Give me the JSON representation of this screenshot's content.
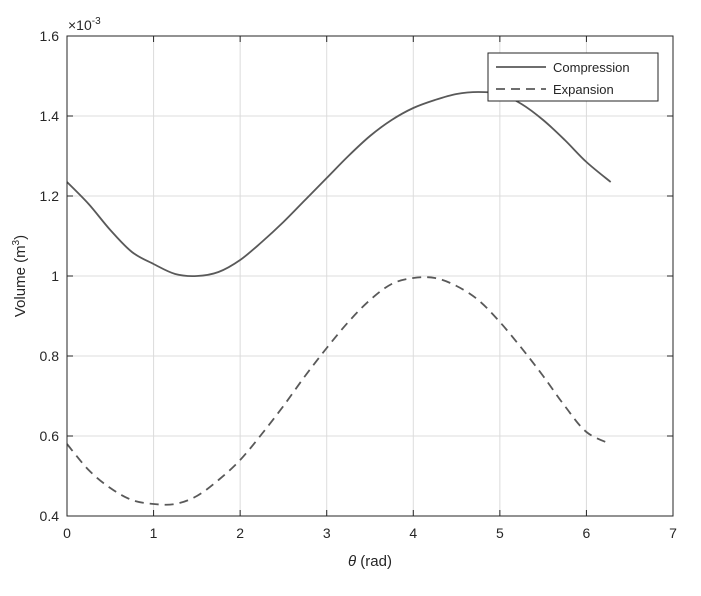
{
  "chart_data": {
    "type": "line",
    "title": "",
    "xlabel_symbol": "θ",
    "xlabel_unit": " (rad)",
    "ylabel_text": "Volume (m",
    "ylabel_sup": "3",
    "ylabel_close": ")",
    "y_multiplier_base": "×10",
    "y_multiplier_exp": "-3",
    "xlim": [
      0,
      7
    ],
    "ylim": [
      0.4,
      1.6
    ],
    "xticks": [
      0,
      1,
      2,
      3,
      4,
      5,
      6,
      7
    ],
    "xtick_labels": [
      "0",
      "1",
      "2",
      "3",
      "4",
      "5",
      "6",
      "7"
    ],
    "yticks": [
      0.4,
      0.6,
      0.8,
      1.0,
      1.2,
      1.4,
      1.6
    ],
    "ytick_labels": [
      "0.4",
      "0.6",
      "0.8",
      "1",
      "1.2",
      "1.4",
      "1.6"
    ],
    "grid": true,
    "legend_position": "top-right",
    "x": [
      0,
      0.25,
      0.5,
      0.75,
      1.0,
      1.25,
      1.5,
      1.75,
      2.0,
      2.25,
      2.5,
      2.75,
      3.0,
      3.25,
      3.5,
      3.75,
      4.0,
      4.25,
      4.5,
      4.75,
      5.0,
      5.25,
      5.5,
      5.75,
      6.0,
      6.28
    ],
    "series": [
      {
        "name": "Compression",
        "style": "solid",
        "color": "#595959",
        "values": [
          1.235,
          1.18,
          1.115,
          1.06,
          1.03,
          1.005,
          1.0,
          1.01,
          1.04,
          1.085,
          1.135,
          1.19,
          1.245,
          1.3,
          1.35,
          1.39,
          1.42,
          1.44,
          1.455,
          1.46,
          1.455,
          1.43,
          1.39,
          1.34,
          1.285,
          1.235
        ]
      },
      {
        "name": "Expansion",
        "style": "dashed",
        "color": "#595959",
        "values": [
          0.58,
          0.515,
          0.47,
          0.44,
          0.43,
          0.43,
          0.45,
          0.49,
          0.54,
          0.605,
          0.675,
          0.75,
          0.82,
          0.885,
          0.94,
          0.98,
          0.995,
          0.995,
          0.975,
          0.94,
          0.885,
          0.82,
          0.75,
          0.675,
          0.61,
          0.58
        ]
      }
    ]
  }
}
